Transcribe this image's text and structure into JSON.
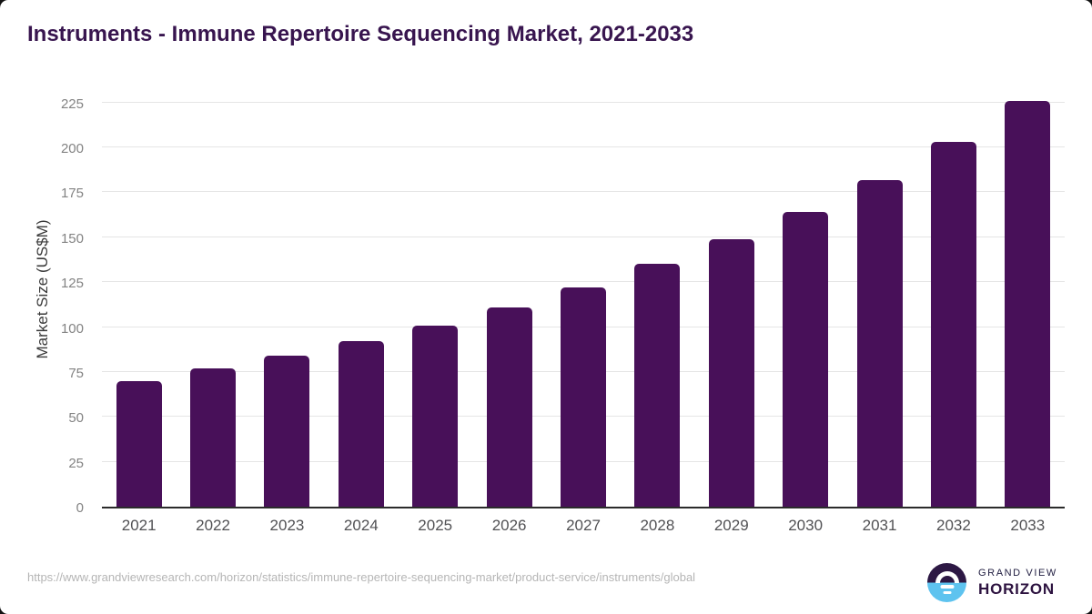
{
  "header": {
    "title": "Instruments - Immune Repertoire Sequencing Market, 2021-2033"
  },
  "chart_data": {
    "type": "bar",
    "title": "Instruments - Immune Repertoire Sequencing Market, 2021-2033",
    "categories": [
      "2021",
      "2022",
      "2023",
      "2024",
      "2025",
      "2026",
      "2027",
      "2028",
      "2029",
      "2030",
      "2031",
      "2032",
      "2033"
    ],
    "values": [
      70,
      77,
      84,
      92,
      101,
      111,
      122,
      135,
      149,
      164,
      182,
      203,
      226
    ],
    "xlabel": "",
    "ylabel": "Market Size (US$M)",
    "ylim": [
      0,
      235
    ],
    "yticks": [
      0,
      25,
      50,
      75,
      100,
      125,
      150,
      175,
      200,
      225
    ],
    "grid": true,
    "legend": false,
    "bar_color": "#481059"
  },
  "footer": {
    "source_url": "https://www.grandviewresearch.com/horizon/statistics/immune-repertoire-sequencing-market/product-service/instruments/global",
    "logo": {
      "icon": "sunrise-circle-icon",
      "line1": "GRAND VIEW",
      "line2": "HORIZON"
    }
  },
  "colors": {
    "bar": "#481059",
    "title_text": "#38154f",
    "gridline": "#e5e5e5",
    "axis_line": "#2b2b2b",
    "ytick_text": "#838383",
    "xtick_text": "#515154",
    "ylabel_text": "#3a3a3a",
    "url_text": "#b5b5b5",
    "logo_top": "#2d1844",
    "logo_bottom": "#5ec3ef",
    "logo_text_dark": "#232043",
    "logo_text_purple": "#2d1340"
  }
}
